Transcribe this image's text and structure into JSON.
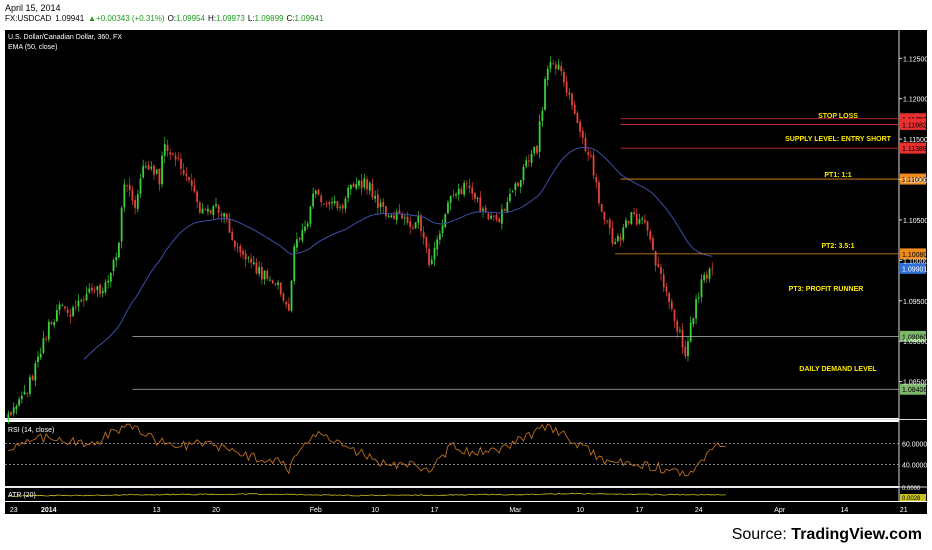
{
  "header": {
    "date": "April 15, 2014",
    "symbol": "FX:USDCAD",
    "last": "1.09941",
    "change": "+0.00343 (+0.31%)",
    "open_label": "O:",
    "open": "1.09954",
    "high_label": "H:",
    "high": "1.09973",
    "low_label": "L:",
    "low": "1.09899",
    "close_label": "C:",
    "close": "1.09941"
  },
  "source": {
    "prefix": "Source:",
    "brand": "TradingView.com"
  },
  "colors": {
    "background": "#000000",
    "up": "#3bd13b",
    "down": "#e0443a",
    "ema": "#3b4fa8",
    "annotation_text": "#ffea00",
    "rsi": "#d07a1e",
    "atr": "#c8c21e",
    "guide_line": "#b5b5b5"
  },
  "chart_data": [
    {
      "type": "candlestick",
      "title": "U.S. Dollar/Canadian Dollar, 360, FX",
      "indicator_label": "EMA (50, close)",
      "ylim": [
        1.0805,
        1.1285
      ],
      "y_ticks": [
        "1.12500",
        "1.12000",
        "1.11500",
        "1.11000",
        "1.10500",
        "1.10000",
        "1.09500",
        "1.09000",
        "1.08500"
      ],
      "x_ticks": [
        "23",
        "2014",
        "13",
        "20",
        "Feb",
        "10",
        "17",
        "Mar",
        "10",
        "17",
        "24",
        "Apr",
        "14",
        "21",
        "May"
      ],
      "x_tick_bars": [
        2,
        15,
        55,
        77,
        114,
        136,
        158,
        188,
        212,
        234,
        256,
        286,
        310,
        332,
        354
      ],
      "n_bars": 330,
      "price_path": [
        [
          0,
          1.0805
        ],
        [
          8,
          1.0848
        ],
        [
          15,
          1.0918
        ],
        [
          20,
          1.0945
        ],
        [
          24,
          1.0935
        ],
        [
          30,
          1.0968
        ],
        [
          34,
          1.0958
        ],
        [
          40,
          1.1
        ],
        [
          43,
          1.109
        ],
        [
          47,
          1.1068
        ],
        [
          50,
          1.112
        ],
        [
          56,
          1.1102
        ],
        [
          58,
          1.1145
        ],
        [
          64,
          1.112
        ],
        [
          70,
          1.107
        ],
        [
          73,
          1.1055
        ],
        [
          77,
          1.1068
        ],
        [
          81,
          1.1048
        ],
        [
          86,
          1.1005
        ],
        [
          92,
          1.0988
        ],
        [
          100,
          1.0972
        ],
        [
          104,
          1.094
        ],
        [
          106,
          1.1018
        ],
        [
          110,
          1.104
        ],
        [
          114,
          1.1088
        ],
        [
          118,
          1.1065
        ],
        [
          124,
          1.1072
        ],
        [
          129,
          1.11
        ],
        [
          134,
          1.109
        ],
        [
          140,
          1.1055
        ],
        [
          145,
          1.1062
        ],
        [
          148,
          1.104
        ],
        [
          152,
          1.105
        ],
        [
          156,
          1.0995
        ],
        [
          160,
          1.1035
        ],
        [
          164,
          1.108
        ],
        [
          170,
          1.109
        ],
        [
          176,
          1.106
        ],
        [
          182,
          1.1045
        ],
        [
          185,
          1.1075
        ],
        [
          191,
          1.111
        ],
        [
          196,
          1.114
        ],
        [
          200,
          1.1245
        ],
        [
          205,
          1.1235
        ],
        [
          209,
          1.1185
        ],
        [
          212,
          1.1162
        ],
        [
          216,
          1.1125
        ],
        [
          220,
          1.106
        ],
        [
          225,
          1.1018
        ],
        [
          231,
          1.1055
        ],
        [
          237,
          1.104
        ],
        [
          241,
          1.0985
        ],
        [
          245,
          1.0955
        ],
        [
          249,
          1.0905
        ],
        [
          251,
          1.088
        ],
        [
          253,
          1.0925
        ],
        [
          258,
          1.0982
        ],
        [
          261,
          1.099
        ]
      ],
      "closes": {
        "stop_loss": 1.11752,
        "entry_short": 1.11682,
        "supply": 1.11389,
        "pt1": 1.11006,
        "pt2": 1.1008,
        "last": 1.09901,
        "daily_demand": 1.0906,
        "demand_low": 1.08406
      },
      "levels": [
        {
          "name": "stop-loss",
          "label": "STOP LOSS",
          "price": 1.11752,
          "price_label": "1.11752",
          "color": "#e83030",
          "line_start_bar": 227
        },
        {
          "name": "entry-short",
          "label": "SUPPLY LEVEL: ENTRY SHORT",
          "price": 1.11682,
          "price_label": "1.11682",
          "color": "#e83030",
          "line_start_bar": 227
        },
        {
          "name": "supply-upper",
          "label": "",
          "price": 1.11389,
          "price_label": "1.11389",
          "color": "#e83030",
          "line_start_bar": 227
        },
        {
          "name": "pt1",
          "label": "PT1: 1:1",
          "price": 1.11006,
          "price_label": "1.11006",
          "color": "#f08c1e",
          "line_start_bar": 227
        },
        {
          "name": "pt2",
          "label": "PT2:  3.5:1",
          "price": 1.1008,
          "price_label": "1.10080",
          "color": "#f08c1e",
          "line_start_bar": 225
        },
        {
          "name": "daily-demand",
          "label": "DAILY DEMAND LEVEL",
          "price": 1.0906,
          "price_label": "1.09060",
          "color": "#7cb86a",
          "line_start_bar": 46
        },
        {
          "name": "demand-low",
          "label": "",
          "price": 1.08406,
          "price_label": "1.08406",
          "color": "#7cb86a",
          "line_start_bar": 46
        }
      ],
      "last_price_label": "1.09901",
      "runner_label": "PT3: PROFIT RUNNER"
    },
    {
      "type": "line",
      "title": "RSI (14, close)",
      "ylim": [
        20,
        80
      ],
      "levels": [
        60,
        40
      ],
      "y_tick_labels": [
        "60.0000",
        "40.0000"
      ],
      "rsi_path": [
        [
          0,
          55
        ],
        [
          10,
          66
        ],
        [
          20,
          63
        ],
        [
          30,
          58
        ],
        [
          45,
          78
        ],
        [
          55,
          62
        ],
        [
          65,
          58
        ],
        [
          75,
          60
        ],
        [
          88,
          48
        ],
        [
          100,
          42
        ],
        [
          104,
          36
        ],
        [
          110,
          58
        ],
        [
          115,
          68
        ],
        [
          124,
          57
        ],
        [
          130,
          52
        ],
        [
          140,
          40
        ],
        [
          150,
          40
        ],
        [
          156,
          32
        ],
        [
          164,
          57
        ],
        [
          172,
          52
        ],
        [
          184,
          56
        ],
        [
          195,
          70
        ],
        [
          200,
          76
        ],
        [
          210,
          62
        ],
        [
          220,
          44
        ],
        [
          230,
          40
        ],
        [
          240,
          38
        ],
        [
          248,
          32
        ],
        [
          252,
          28
        ],
        [
          258,
          44
        ],
        [
          262,
          55
        ],
        [
          266,
          60
        ]
      ]
    },
    {
      "type": "line",
      "title": "ATR (20)",
      "y_tick_labels": [
        "0.0000",
        "0.0028"
      ],
      "atr_path": [
        [
          0,
          0.0026
        ],
        [
          40,
          0.0028
        ],
        [
          90,
          0.003
        ],
        [
          130,
          0.0027
        ],
        [
          190,
          0.0029
        ],
        [
          210,
          0.0031
        ],
        [
          240,
          0.0029
        ],
        [
          266,
          0.0028
        ]
      ]
    }
  ]
}
